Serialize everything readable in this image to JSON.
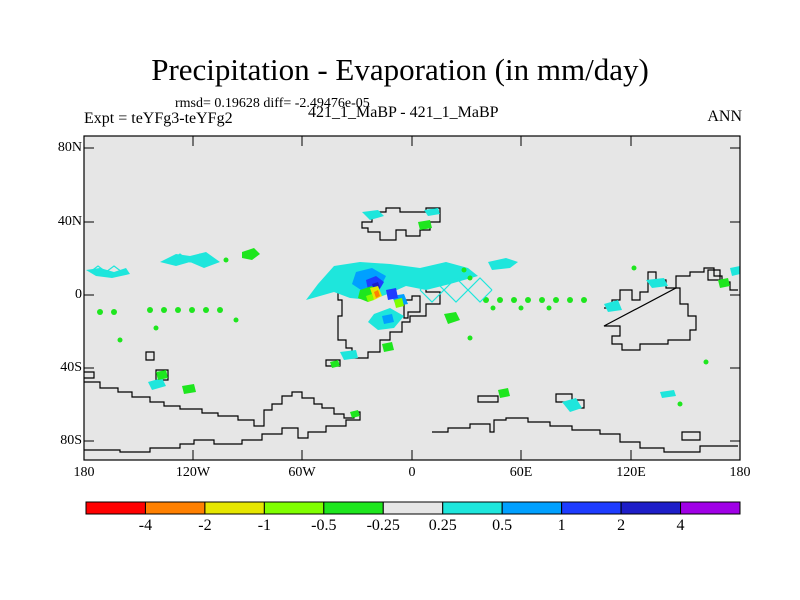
{
  "title": "Precipitation - Evaporation (in mm/day)",
  "stats": "rmsd= 0.19628 diff= -2.49476e-05",
  "expt": "Expt = teYFg3-teYFg2",
  "case": "421_1_MaBP - 421_1_MaBP",
  "season": "ANN",
  "lat_labels": [
    "80N",
    "40N",
    "0",
    "40S",
    "80S"
  ],
  "lon_labels": [
    "180",
    "120W",
    "60W",
    "0",
    "60E",
    "120E",
    "180"
  ],
  "colorbar": {
    "colors": [
      "#ff0000",
      "#ff8000",
      "#e6e600",
      "#80ff00",
      "#1ee61e",
      "#e6e6e6",
      "#1ee6dc",
      "#00a0ff",
      "#1e3cff",
      "#1e1ec8",
      "#a000e6"
    ],
    "labels": [
      "-4",
      "-2",
      "-1",
      "-0.5",
      "-0.25",
      "0.25",
      "0.5",
      "1",
      "2",
      "4"
    ]
  },
  "map_data": {
    "background_color": "#e6e6e6",
    "lat_range": [
      -90,
      90
    ],
    "lon_range": [
      -180,
      180
    ]
  }
}
